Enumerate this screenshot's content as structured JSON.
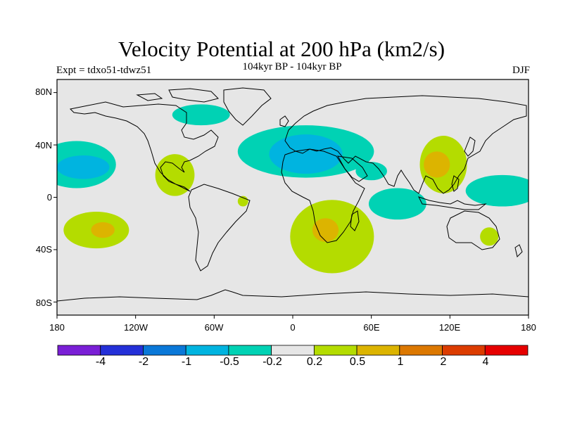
{
  "title": "Velocity Potential at 200 hPa (km2/s)",
  "subtitle_left": "Expt = tdxo51-tdwz51",
  "subtitle_center": "104kyr BP - 104kyr BP",
  "subtitle_right": "DJF",
  "lat_ticks": [
    "80N",
    "40N",
    "0",
    "40S",
    "80S"
  ],
  "lon_ticks": [
    "180",
    "120W",
    "60W",
    "0",
    "60E",
    "120E",
    "180"
  ],
  "colorbar": {
    "colors": [
      "#7a1fd6",
      "#2430d8",
      "#0a78d8",
      "#00b4e0",
      "#00d2b4",
      "#e6e6e6",
      "#b4dc00",
      "#dcb400",
      "#dc7800",
      "#dc3c00",
      "#e60000"
    ],
    "labels": [
      "-4",
      "-2",
      "-1",
      "-0.5",
      "-0.2",
      "0.2",
      "0.5",
      "1",
      "2",
      "4"
    ]
  },
  "fields": [
    {
      "level": "-0.2",
      "color": "#00d2b4",
      "region": "central north pacific",
      "center": [
        -165,
        25
      ],
      "radius": [
        30,
        18
      ]
    },
    {
      "level": "-0.5",
      "color": "#00b4e0",
      "region": "central north pacific core",
      "center": [
        -160,
        23
      ],
      "radius": [
        20,
        9
      ]
    },
    {
      "level": "-0.2",
      "color": "#00d2b4",
      "region": "canada arctic",
      "center": [
        -70,
        63
      ],
      "radius": [
        22,
        8
      ]
    },
    {
      "level": "-0.2",
      "color": "#00d2b4",
      "region": "north atlantic europe",
      "center": [
        10,
        35
      ],
      "radius": [
        52,
        20
      ]
    },
    {
      "level": "-0.5",
      "color": "#00b4e0",
      "region": "mediterranean europe",
      "center": [
        10,
        33
      ],
      "radius": [
        28,
        15
      ]
    },
    {
      "level": "-0.2",
      "color": "#00d2b4",
      "region": "arabian sea",
      "center": [
        60,
        20
      ],
      "radius": [
        12,
        7
      ]
    },
    {
      "level": "-0.2",
      "color": "#00d2b4",
      "region": "indian ocean",
      "center": [
        80,
        -5
      ],
      "radius": [
        22,
        12
      ]
    },
    {
      "level": "-0.2",
      "color": "#00d2b4",
      "region": "western pacific",
      "center": [
        160,
        5
      ],
      "radius": [
        28,
        12
      ]
    },
    {
      "level": "0.2",
      "color": "#b4dc00",
      "region": "gulf of mexico",
      "center": [
        -90,
        17
      ],
      "radius": [
        15,
        16
      ]
    },
    {
      "level": "0.2",
      "color": "#b4dc00",
      "region": "brazil",
      "center": [
        -38,
        -3
      ],
      "radius": [
        4,
        4
      ]
    },
    {
      "level": "0.2",
      "color": "#b4dc00",
      "region": "south pacific",
      "center": [
        -150,
        -25
      ],
      "radius": [
        25,
        14
      ]
    },
    {
      "level": "0.5",
      "color": "#dcb400",
      "region": "south pacific core",
      "center": [
        -145,
        -25
      ],
      "radius": [
        9,
        6
      ]
    },
    {
      "level": "0.2",
      "color": "#b4dc00",
      "region": "southern africa",
      "center": [
        30,
        -30
      ],
      "radius": [
        32,
        28
      ]
    },
    {
      "level": "0.5",
      "color": "#dcb400",
      "region": "southern africa core",
      "center": [
        25,
        -25
      ],
      "radius": [
        10,
        9
      ]
    },
    {
      "level": "0.2",
      "color": "#b4dc00",
      "region": "east asia",
      "center": [
        115,
        25
      ],
      "radius": [
        18,
        22
      ]
    },
    {
      "level": "0.5",
      "color": "#dcb400",
      "region": "china core",
      "center": [
        110,
        25
      ],
      "radius": [
        10,
        10
      ]
    },
    {
      "level": "0.2",
      "color": "#b4dc00",
      "region": "tasman sea",
      "center": [
        150,
        -30
      ],
      "radius": [
        7,
        7
      ]
    }
  ]
}
